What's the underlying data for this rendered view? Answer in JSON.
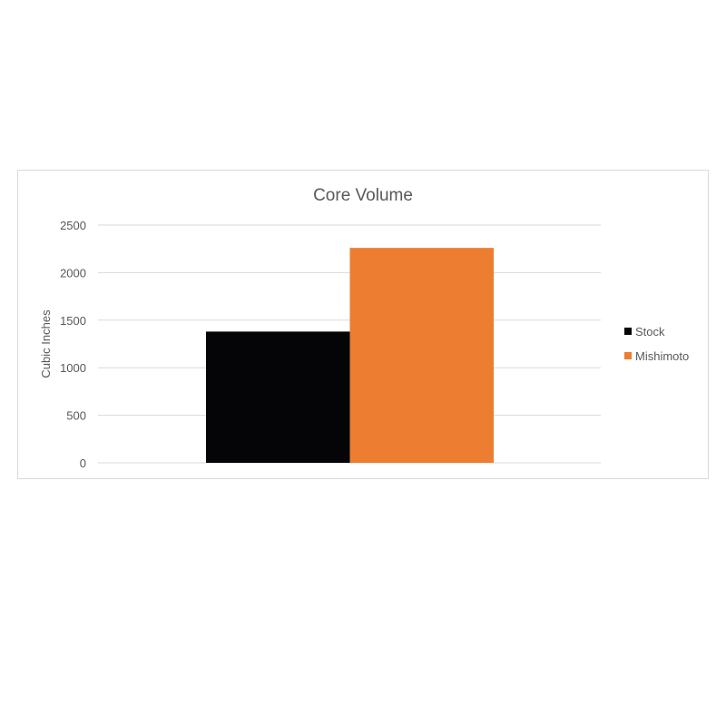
{
  "chart_data": {
    "type": "bar",
    "title": "Core Volume",
    "xlabel": "",
    "ylabel": "Cubic Inches",
    "ylim": [
      0,
      2500
    ],
    "yticks": [
      0,
      500,
      1000,
      1500,
      2000,
      2500
    ],
    "grid": true,
    "legend_position": "right",
    "categories": [
      ""
    ],
    "series": [
      {
        "name": "Stock",
        "values": [
          1380
        ],
        "color": "#050507"
      },
      {
        "name": "Mishimoto",
        "values": [
          2260
        ],
        "color": "#ed7d31"
      }
    ]
  }
}
